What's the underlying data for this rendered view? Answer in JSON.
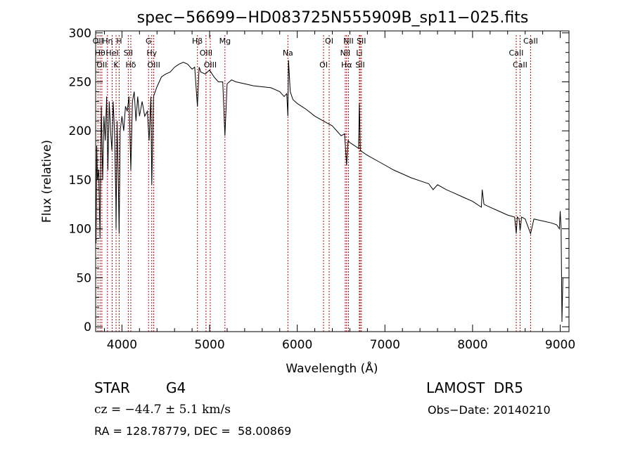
{
  "chart_data": {
    "type": "line",
    "title": "spec−56699−HD083725N555909B_sp11−025.fits",
    "xlabel": "Wavelength (Å)",
    "ylabel": "Flux (relative)",
    "xlim": [
      3700,
      9100
    ],
    "ylim": [
      -5,
      302
    ],
    "xticks": [
      4000,
      5000,
      6000,
      7000,
      8000,
      9000
    ],
    "yticks": [
      0,
      50,
      100,
      150,
      200,
      250,
      300
    ],
    "grid": false,
    "series": [
      {
        "x": [
          3700,
          3705,
          3712,
          3720,
          3735,
          3750,
          3765,
          3780,
          3795,
          3810,
          3825,
          3840,
          3855,
          3870,
          3885,
          3900,
          3915,
          3930,
          3933,
          3945,
          3960,
          3968,
          3980,
          4000,
          4020,
          4040,
          4060,
          4080,
          4101,
          4120,
          4140,
          4160,
          4180,
          4200,
          4230,
          4260,
          4290,
          4310,
          4330,
          4340,
          4360,
          4380,
          4400,
          4450,
          4500,
          4550,
          4600,
          4650,
          4700,
          4750,
          4800,
          4830,
          4861,
          4880,
          4900,
          4950,
          5000,
          5050,
          5100,
          5150,
          5175,
          5200,
          5250,
          5300,
          5400,
          5500,
          5600,
          5700,
          5800,
          5850,
          5880,
          5893,
          5900,
          5920,
          5950,
          6000,
          6100,
          6200,
          6300,
          6400,
          6500,
          6540,
          6563,
          6580,
          6600,
          6650,
          6700,
          6708,
          6720,
          6750,
          6800,
          6900,
          7000,
          7100,
          7200,
          7300,
          7400,
          7500,
          7550,
          7600,
          7700,
          7800,
          7900,
          8000,
          8100,
          8110,
          8130,
          8200,
          8300,
          8400,
          8480,
          8498,
          8510,
          8530,
          8542,
          8560,
          8600,
          8662,
          8700,
          8800,
          8900,
          8960,
          8990,
          9000,
          9010,
          9020,
          9030
        ],
        "values": [
          135,
          85,
          185,
          150,
          160,
          90,
          225,
          150,
          215,
          190,
          235,
          160,
          230,
          200,
          180,
          230,
          200,
          130,
          100,
          210,
          140,
          95,
          200,
          215,
          200,
          225,
          220,
          235,
          160,
          230,
          240,
          210,
          235,
          215,
          230,
          215,
          220,
          190,
          235,
          145,
          235,
          240,
          245,
          255,
          258,
          260,
          265,
          268,
          270,
          268,
          263,
          265,
          225,
          265,
          260,
          258,
          262,
          255,
          250,
          250,
          195,
          248,
          252,
          250,
          248,
          246,
          245,
          244,
          240,
          235,
          238,
          215,
          272,
          240,
          232,
          228,
          222,
          215,
          210,
          205,
          195,
          197,
          165,
          190,
          188,
          185,
          182,
          228,
          180,
          178,
          175,
          170,
          165,
          160,
          156,
          152,
          149,
          146,
          140,
          145,
          140,
          136,
          132,
          128,
          122,
          140,
          125,
          122,
          118,
          114,
          112,
          95,
          112,
          110,
          98,
          112,
          110,
          95,
          110,
          108,
          106,
          104,
          100,
          118,
          100,
          5,
          50
        ]
      }
    ],
    "line_markers": [
      {
        "wavelength": 3726,
        "label": "OII"
      },
      {
        "wavelength": 3750,
        "label": "Hθ"
      },
      {
        "wavelength": 3771,
        "label": "OII"
      },
      {
        "wavelength": 3835,
        "label": "Hη"
      },
      {
        "wavelength": 3889,
        "label": "HeI"
      },
      {
        "wavelength": 3933,
        "label": "K"
      },
      {
        "wavelength": 3968,
        "label": "H"
      },
      {
        "wavelength": 4072,
        "label": "SII"
      },
      {
        "wavelength": 4101,
        "label": "Hδ"
      },
      {
        "wavelength": 4304,
        "label": "G"
      },
      {
        "wavelength": 4340,
        "label": "Hγ"
      },
      {
        "wavelength": 4363,
        "label": "OIII"
      },
      {
        "wavelength": 4861,
        "label": "Hβ"
      },
      {
        "wavelength": 4959,
        "label": "OIII"
      },
      {
        "wavelength": 5007,
        "label": "OIII"
      },
      {
        "wavelength": 5175,
        "label": "Mg"
      },
      {
        "wavelength": 5893,
        "label": "Na"
      },
      {
        "wavelength": 6300,
        "label": "OI"
      },
      {
        "wavelength": 6364,
        "label": "OI"
      },
      {
        "wavelength": 6548,
        "label": "NII"
      },
      {
        "wavelength": 6563,
        "label": "Hα"
      },
      {
        "wavelength": 6584,
        "label": "NII"
      },
      {
        "wavelength": 6708,
        "label": "Li"
      },
      {
        "wavelength": 6717,
        "label": "SII"
      },
      {
        "wavelength": 6731,
        "label": "SII"
      },
      {
        "wavelength": 8498,
        "label": "CaII"
      },
      {
        "wavelength": 8542,
        "label": "CaII"
      },
      {
        "wavelength": 8662,
        "label": "CaII"
      }
    ]
  },
  "info": {
    "object_class": "STAR",
    "subclass": "G4",
    "survey": "LAMOST  DR5",
    "velocity": "cz = −44.7 ± 5.1 km/s",
    "obs_date": "Obs−Date: 20140210",
    "coords": "RA = 128.78779, DEC =  58.00869"
  },
  "colors": {
    "spectrum": "#000000",
    "marker_line": "#cc0000",
    "background": "#ffffff"
  }
}
